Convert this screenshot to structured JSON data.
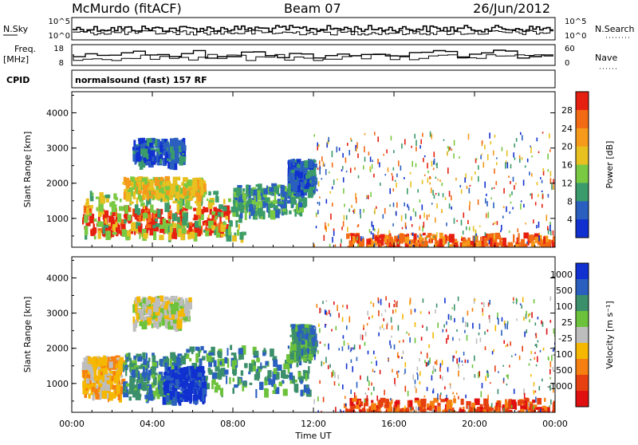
{
  "header": {
    "station": "McMurdo (fitACF)",
    "beam": "Beam 07",
    "date": "26/Jun/2012"
  },
  "panels": {
    "noise": {
      "left_label": "N.Sky",
      "right_label": "N.Search",
      "left_ticks": [
        "10^5",
        "10^0"
      ],
      "right_ticks": [
        "10^5",
        "10^0"
      ]
    },
    "freq": {
      "left_label_line1": "Freq.",
      "left_label_line2": "[MHz]",
      "left_ticks": [
        "18",
        "8"
      ],
      "right_label": "Nave",
      "right_ticks": [
        "60",
        "0"
      ]
    },
    "cpid": {
      "label": "CPID",
      "text": "normalsound (fast) 157 RF"
    }
  },
  "colors": {
    "power_scale": [
      "#1030d0",
      "#2a5fbf",
      "#3b9b6a",
      "#7ac943",
      "#e8c020",
      "#f59a1a",
      "#f26a14",
      "#e62010"
    ],
    "velocity_scale": [
      "#1030d0",
      "#2a5fbf",
      "#3b8f6a",
      "#6cc23a",
      "#bdbdbd",
      "#f5b700",
      "#f57f10",
      "#e64010",
      "#e01010"
    ]
  },
  "chart_data": [
    {
      "type": "heatmap",
      "name": "power",
      "ylabel": "Slant Range [km]",
      "xlabel": "",
      "x_ticks": [
        "00:00",
        "04:00",
        "08:00",
        "12:00",
        "16:00",
        "20:00",
        "00:00"
      ],
      "y_ticks": [
        "1000",
        "2000",
        "3000",
        "4000"
      ],
      "xlim_hours": [
        0,
        24
      ],
      "ylim_km": [
        180,
        4600
      ],
      "colorbar": {
        "label": "Power [dB]",
        "ticks": [
          "4",
          "8",
          "12",
          "16",
          "20",
          "24",
          "28"
        ]
      },
      "regions": [
        {
          "x0": 0.5,
          "x1": 7.8,
          "y0": 650,
          "y1": 1400,
          "level": 7
        },
        {
          "x0": 0.6,
          "x1": 8.5,
          "y0": 500,
          "y1": 1800,
          "level": 3
        },
        {
          "x0": 2.5,
          "x1": 6.5,
          "y0": 1700,
          "y1": 2200,
          "level": 4
        },
        {
          "x0": 8.0,
          "x1": 11.5,
          "y0": 1200,
          "y1": 2000,
          "level": 2
        },
        {
          "x0": 3.0,
          "x1": 5.5,
          "y0": 2600,
          "y1": 3300,
          "level": 1
        },
        {
          "x0": 10.7,
          "x1": 12.0,
          "y0": 1800,
          "y1": 2700,
          "level": 1
        },
        {
          "x0": 13.5,
          "x1": 24.0,
          "y0": 180,
          "y1": 600,
          "level": 6
        }
      ]
    },
    {
      "type": "heatmap",
      "name": "velocity",
      "ylabel": "Slant Range [km]",
      "xlabel": "Time UT",
      "x_ticks": [
        "00:00",
        "04:00",
        "08:00",
        "12:00",
        "16:00",
        "20:00",
        "00:00"
      ],
      "y_ticks": [
        "1000",
        "2000",
        "3000",
        "4000"
      ],
      "xlim_hours": [
        0,
        24
      ],
      "ylim_km": [
        180,
        4600
      ],
      "colorbar": {
        "label": "Velocity [m s⁻¹]",
        "ticks": [
          "1000",
          "500",
          "100",
          "25",
          "-25",
          "-100",
          "-500",
          "-1000"
        ]
      },
      "regions": [
        {
          "x0": 0.5,
          "x1": 2.5,
          "y0": 700,
          "y1": 1800,
          "level": 5
        },
        {
          "x0": 2.5,
          "x1": 5.5,
          "y0": 600,
          "y1": 1900,
          "level": 2
        },
        {
          "x0": 5.5,
          "x1": 11.8,
          "y0": 800,
          "y1": 2100,
          "level": 2
        },
        {
          "x0": 4.5,
          "x1": 6.5,
          "y0": 600,
          "y1": 1500,
          "level": 0
        },
        {
          "x0": 3.0,
          "x1": 5.8,
          "y0": 2700,
          "y1": 3500,
          "level": 4
        },
        {
          "x0": 10.8,
          "x1": 12.0,
          "y0": 1800,
          "y1": 2700,
          "level": 2
        },
        {
          "x0": 13.5,
          "x1": 24.0,
          "y0": 180,
          "y1": 600,
          "level": 7
        }
      ]
    }
  ]
}
